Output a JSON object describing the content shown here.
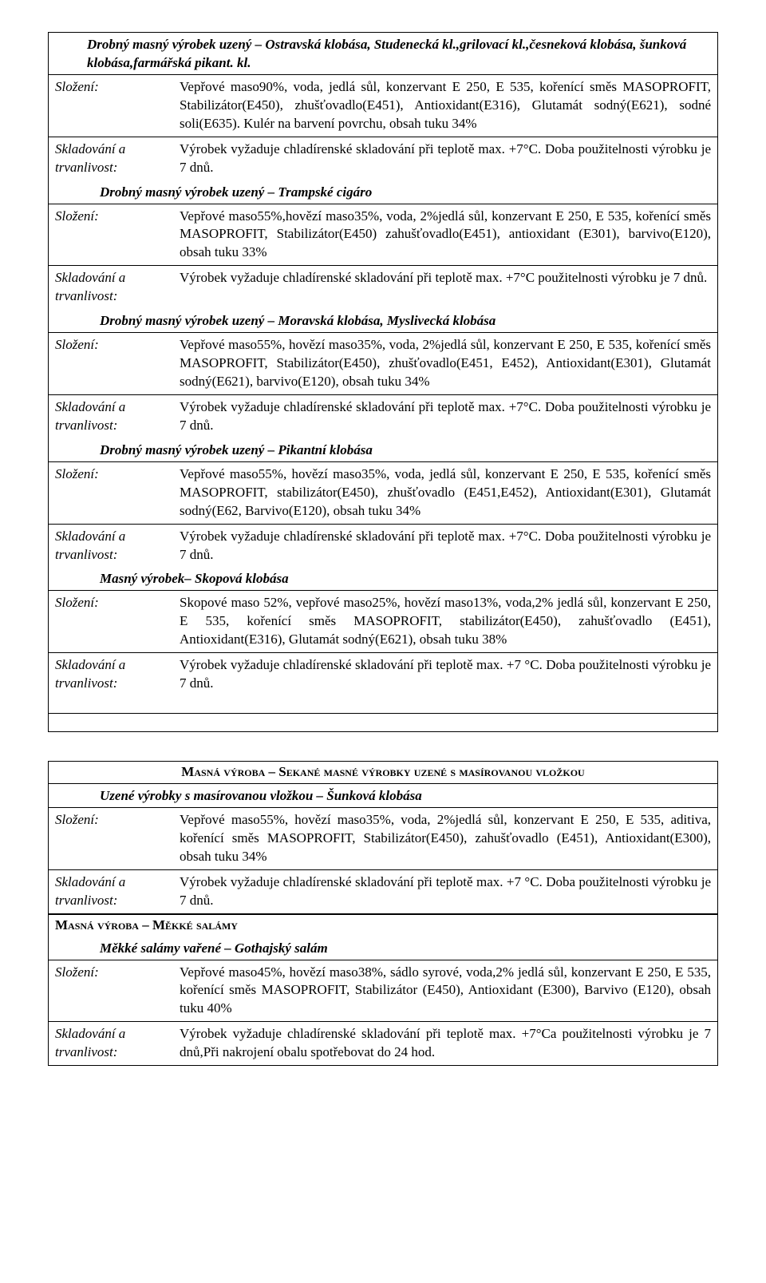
{
  "labels": {
    "composition": "Složení:",
    "storage1": "Skladování a",
    "storage2": "trvanlivost:"
  },
  "group1": [
    {
      "title": "Drobný masný výrobek uzený – Ostravská klobása, Studenecká kl.,grilovací kl.,česneková klobása, šunková klobása,farmářská pikant. kl.",
      "title_indent": "title-row",
      "composition": "Vepřové maso90%, voda, jedlá sůl, konzervant E 250, E 535, kořenící směs MASOPROFIT, Stabilizátor(E450), zhušťovadlo(E451), Antioxidant(E316), Glutamát sodný(E621), sodné soli(E635). Kulér na barvení povrchu, obsah tuku 34%",
      "storage": "Výrobek vyžaduje chladírenské skladování při teplotě max. +7°C. Doba použitelnosti výrobku je  7  dnů."
    },
    {
      "title": "Drobný masný výrobek uzený – Trampské cigáro",
      "title_indent": "title-row sub",
      "composition": "Vepřové maso55%,hovězí maso35%, voda, 2%jedlá sůl, konzervant E 250, E 535, kořenící směs MASOPROFIT, Stabilizátor(E450) zahušťovadlo(E451), antioxidant (E301), barvivo(E120), obsah tuku 33%",
      "storage": "Výrobek vyžaduje chladírenské skladování při teplotě max. +7°C použitelnosti výrobku je 7  dnů."
    },
    {
      "title": "Drobný masný výrobek uzený – Moravská klobása, Myslivecká klobása",
      "title_indent": "title-row sub",
      "composition": "Vepřové maso55%, hovězí maso35%, voda, 2%jedlá sůl, konzervant E 250, E 535, kořenící směs MASOPROFIT, Stabilizátor(E450), zhušťovadlo(E451, E452), Antioxidant(E301), Glutamát sodný(E621), barvivo(E120), obsah tuku 34%",
      "storage": "Výrobek vyžaduje chladírenské skladování při teplotě max. +7°C. Doba použitelnosti výrobku je  7   dnů."
    },
    {
      "title": "Drobný masný výrobek uzený – Pikantní klobása",
      "title_indent": "title-row sub",
      "composition": "Vepřové maso55%, hovězí maso35%, voda, jedlá sůl, konzervant E 250, E 535, kořenící směs MASOPROFIT, stabilizátor(E450), zhušťovadlo (E451,E452), Antioxidant(E301), Glutamát sodný(E62, Barvivo(E120), obsah tuku 34%",
      "storage": "Výrobek vyžaduje chladírenské skladování při teplotě max. +7°C. Doba použitelnosti výrobku je  7   dnů."
    },
    {
      "title": "Masný výrobek– Skopová klobása",
      "title_indent": "title-row sub",
      "composition": "Skopové maso 52%, vepřové maso25%, hovězí maso13%,  voda,2% jedlá sůl, konzervant E 250, E 535, kořenící směs MASOPROFIT, stabilizátor(E450), zahušťovadlo (E451), Antioxidant(E316), Glutamát sodný(E621), obsah tuku 38%",
      "storage": "Výrobek vyžaduje chladírenské skladování při teplotě max. +7 °C. Doba použitelnosti výrobku je   7   dnů."
    }
  ],
  "section2_hdr": "Masná výroba – Sekané masné výrobky uzené s masírovanou vložkou",
  "group2": {
    "title": "Uzené výrobky s masírovanou vložkou – Šunková klobása",
    "composition": "Vepřové maso55%, hovězí maso35%, voda, 2%jedlá sůl, konzervant E 250, E 535, aditiva, kořenící  směs  MASOPROFIT, Stabilizátor(E450), zahušťovadlo (E451), Antioxidant(E300), obsah tuku 34%",
    "storage": "Výrobek vyžaduje chladírenské skladování při teplotě max. +7 °C. Doba použitelnosti výrobku je 7  dnů."
  },
  "section3_hdr": "Masná výroba – Měkké salámy",
  "group3": {
    "title": "Měkké salámy vařené – Gothajský salám",
    "composition": "Vepřové maso45%, hovězí maso38%, sádlo syrové, voda,2% jedlá sůl, konzervant E 250, E 535, kořenící  směs MASOPROFIT, Stabilizátor (E450), Antioxidant (E300), Barvivo  (E120), obsah tuku 40%",
    "storage": "Výrobek vyžaduje chladírenské skladování při teplotě max. +7°Ca použitelnosti výrobku je   7 dnů,Při nakrojení obalu spotřebovat do 24 hod."
  }
}
